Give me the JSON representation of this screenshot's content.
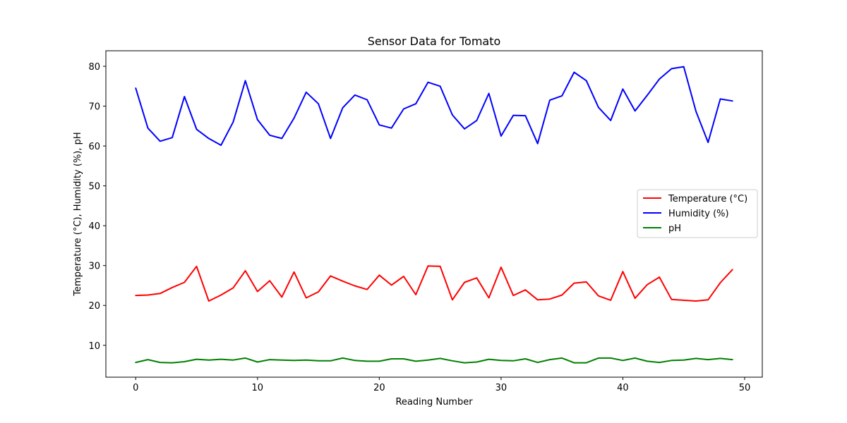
{
  "chart_data": {
    "type": "line",
    "title": "Sensor Data for Tomato",
    "xlabel": "Reading Number",
    "ylabel": "Temperature (°C), Humidity (%), pH",
    "xlim": [
      -2.45,
      51.45
    ],
    "ylim": [
      2.0,
      83.9
    ],
    "xticks": [
      0,
      10,
      20,
      30,
      40,
      50
    ],
    "yticks": [
      10,
      20,
      30,
      40,
      50,
      60,
      70,
      80
    ],
    "grid": false,
    "legend_position": "center-right",
    "x": [
      0,
      1,
      2,
      3,
      4,
      5,
      6,
      7,
      8,
      9,
      10,
      11,
      12,
      13,
      14,
      15,
      16,
      17,
      18,
      19,
      20,
      21,
      22,
      23,
      24,
      25,
      26,
      27,
      28,
      29,
      30,
      31,
      32,
      33,
      34,
      35,
      36,
      37,
      38,
      39,
      40,
      41,
      42,
      43,
      44,
      45,
      46,
      47,
      48,
      49
    ],
    "series": [
      {
        "name": "Temperature (°C)",
        "color": "#ff0000",
        "values": [
          22.5,
          22.6,
          23.0,
          24.5,
          25.8,
          29.8,
          21.1,
          22.6,
          24.4,
          28.7,
          23.5,
          26.2,
          22.1,
          28.4,
          21.9,
          23.4,
          27.4,
          26.1,
          24.9,
          24.0,
          27.6,
          25.1,
          27.3,
          22.7,
          29.9,
          29.8,
          21.4,
          25.8,
          26.9,
          21.9,
          29.6,
          22.5,
          23.9,
          21.4,
          21.6,
          22.6,
          25.6,
          25.9,
          22.4,
          21.3,
          28.5,
          21.8,
          25.2,
          27.1,
          21.5,
          21.3,
          21.1,
          21.4,
          25.7,
          29.0
        ]
      },
      {
        "name": "Humidity (%)",
        "color": "#0000ff",
        "values": [
          74.5,
          64.5,
          61.2,
          62.1,
          72.4,
          64.2,
          61.9,
          60.2,
          66.0,
          76.4,
          66.6,
          62.7,
          61.9,
          67.0,
          73.5,
          70.6,
          61.9,
          69.6,
          72.8,
          71.6,
          65.3,
          64.5,
          69.3,
          70.6,
          76.0,
          75.0,
          67.8,
          64.3,
          66.4,
          73.2,
          62.5,
          67.7,
          67.6,
          60.6,
          71.5,
          72.6,
          78.5,
          76.4,
          69.7,
          66.4,
          74.3,
          68.8,
          72.7,
          76.8,
          79.4,
          79.9,
          68.7,
          60.9,
          71.8,
          71.3
        ]
      },
      {
        "name": "pH",
        "color": "#008000",
        "values": [
          5.7,
          6.4,
          5.7,
          5.6,
          5.9,
          6.5,
          6.3,
          6.5,
          6.3,
          6.8,
          5.8,
          6.4,
          6.3,
          6.2,
          6.3,
          6.1,
          6.1,
          6.8,
          6.2,
          6.0,
          6.0,
          6.6,
          6.6,
          6.0,
          6.3,
          6.7,
          6.1,
          5.6,
          5.8,
          6.5,
          6.2,
          6.1,
          6.6,
          5.7,
          6.4,
          6.8,
          5.6,
          5.6,
          6.8,
          6.8,
          6.2,
          6.8,
          6.0,
          5.7,
          6.2,
          6.3,
          6.7,
          6.4,
          6.7,
          6.4
        ]
      }
    ]
  }
}
